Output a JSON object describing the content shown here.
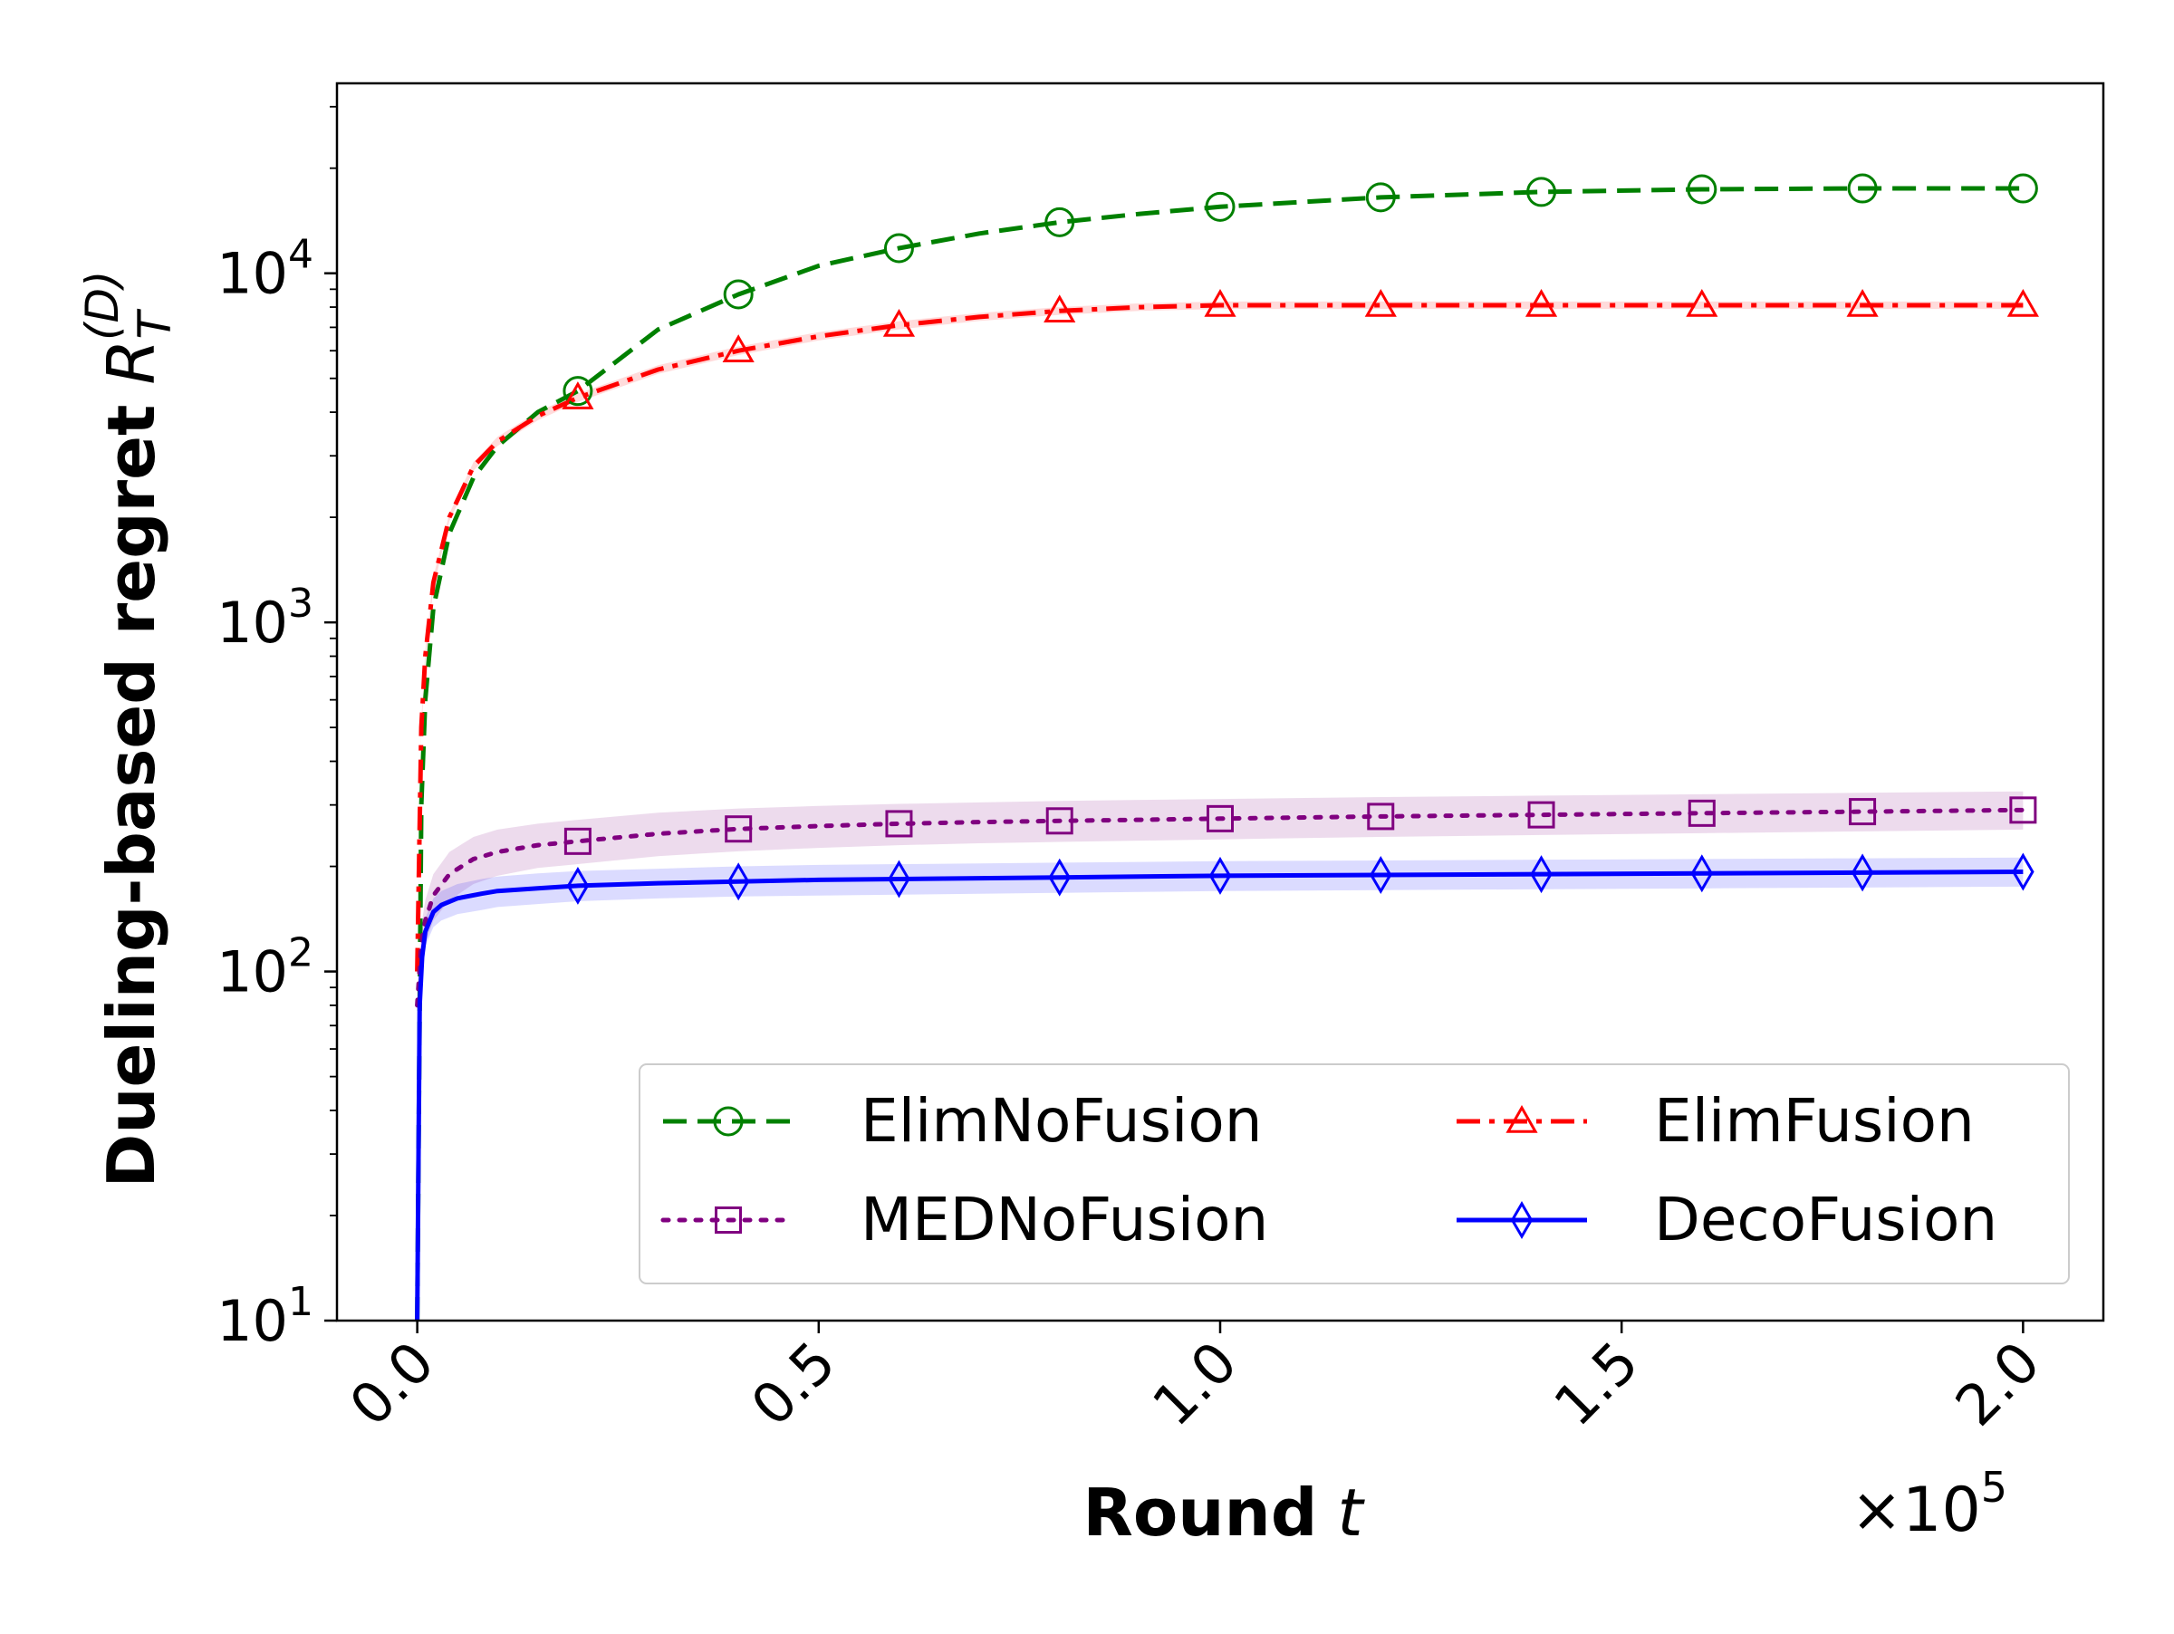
{
  "chart_data": {
    "type": "line",
    "title": "",
    "xlabel": "Round",
    "xlabel_var": "t",
    "ylabel": "Dueling-based regret",
    "ylabel_sym": "R",
    "ylabel_sub": "T",
    "ylabel_sup": "(D)",
    "x_offset_text": "×10",
    "x_offset_exp": "5",
    "xscale": "linear",
    "yscale": "log",
    "xlim": [
      -10000,
      210000
    ],
    "ylim": [
      10,
      35000
    ],
    "xticks": [
      {
        "value": 0,
        "label": "0.0"
      },
      {
        "value": 50000,
        "label": "0.5"
      },
      {
        "value": 100000,
        "label": "1.0"
      },
      {
        "value": 150000,
        "label": "1.5"
      },
      {
        "value": 200000,
        "label": "2.0"
      }
    ],
    "yticks": [
      {
        "value": 10,
        "base": "10",
        "exp": "1"
      },
      {
        "value": 100,
        "base": "10",
        "exp": "2"
      },
      {
        "value": 1000,
        "base": "10",
        "exp": "3"
      },
      {
        "value": 10000,
        "base": "10",
        "exp": "4"
      }
    ],
    "legend_position": "lower-right",
    "series": [
      {
        "name": "ElimNoFusion",
        "color": "#008000",
        "dash": "dashed",
        "marker": "circle",
        "x": [
          0,
          500,
          1000,
          2000,
          4000,
          7000,
          10000,
          15000,
          20000,
          30000,
          40000,
          50000,
          60000,
          70000,
          80000,
          90000,
          100000,
          120000,
          140000,
          160000,
          180000,
          200000
        ],
        "y": [
          10,
          300,
          600,
          1100,
          1800,
          2600,
          3200,
          4000,
          4600,
          6900,
          8700,
          10500,
          11800,
          13000,
          14000,
          14800,
          15500,
          16500,
          17100,
          17400,
          17500,
          17500
        ],
        "lower": [],
        "upper": [],
        "marker_x": [
          20000,
          40000,
          60000,
          80000,
          100000,
          120000,
          140000,
          160000,
          180000,
          200000
        ],
        "marker_y": [
          4600,
          8700,
          11800,
          14000,
          15500,
          16500,
          17100,
          17400,
          17500,
          17500
        ]
      },
      {
        "name": "ElimFusion",
        "color": "#ff0000",
        "dash": "dashdot",
        "marker": "triangle",
        "x": [
          0,
          500,
          1000,
          2000,
          4000,
          7000,
          10000,
          15000,
          20000,
          30000,
          40000,
          50000,
          60000,
          70000,
          80000,
          90000,
          100000,
          120000,
          140000,
          160000,
          180000,
          200000
        ],
        "y": [
          100,
          500,
          800,
          1300,
          2000,
          2800,
          3300,
          3900,
          4400,
          5300,
          6000,
          6600,
          7100,
          7500,
          7800,
          8000,
          8100,
          8100,
          8100,
          8100,
          8100,
          8100
        ],
        "lower": [
          100,
          480,
          770,
          1250,
          1950,
          2720,
          3200,
          3790,
          4280,
          5150,
          5830,
          6420,
          6910,
          7300,
          7600,
          7800,
          7900,
          7900,
          7900,
          7900,
          7900,
          7900
        ],
        "upper": [
          100,
          520,
          830,
          1350,
          2050,
          2880,
          3400,
          4010,
          4520,
          5450,
          6170,
          6780,
          7290,
          7700,
          8000,
          8200,
          8300,
          8300,
          8300,
          8300,
          8300,
          8300
        ],
        "marker_x": [
          20000,
          40000,
          60000,
          80000,
          100000,
          120000,
          140000,
          160000,
          180000,
          200000
        ],
        "marker_y": [
          4400,
          6000,
          7100,
          7800,
          8100,
          8100,
          8100,
          8100,
          8100,
          8100
        ]
      },
      {
        "name": "MEDNoFusion",
        "color": "#800080",
        "dash": "dotted",
        "marker": "square",
        "x": [
          0,
          500,
          1000,
          2000,
          4000,
          7000,
          10000,
          15000,
          20000,
          30000,
          40000,
          50000,
          60000,
          70000,
          80000,
          90000,
          100000,
          120000,
          140000,
          160000,
          180000,
          200000
        ],
        "y": [
          80,
          120,
          140,
          165,
          190,
          210,
          220,
          230,
          236,
          248,
          256,
          261,
          265,
          268,
          270,
          272,
          274,
          278,
          281,
          284,
          287,
          290
        ],
        "lower": [
          70,
          105,
          120,
          140,
          160,
          178,
          188,
          198,
          203,
          214,
          221,
          226,
          230,
          233,
          235,
          237,
          239,
          243,
          246,
          249,
          252,
          255
        ],
        "upper": [
          90,
          135,
          160,
          190,
          220,
          243,
          255,
          265,
          272,
          285,
          293,
          298,
          302,
          305,
          308,
          310,
          312,
          316,
          319,
          322,
          325,
          328
        ],
        "marker_x": [
          20000,
          40000,
          60000,
          80000,
          100000,
          120000,
          140000,
          160000,
          180000,
          200000
        ],
        "marker_y": [
          236,
          256,
          265,
          270,
          274,
          278,
          281,
          284,
          287,
          290
        ]
      },
      {
        "name": "DecoFusion",
        "color": "#0000ff",
        "dash": "solid",
        "marker": "diamond",
        "x": [
          0,
          300,
          600,
          1000,
          2000,
          3000,
          5000,
          8000,
          10000,
          15000,
          20000,
          30000,
          40000,
          50000,
          60000,
          70000,
          80000,
          90000,
          100000,
          120000,
          140000,
          160000,
          180000,
          200000
        ],
        "y": [
          10,
          80,
          110,
          130,
          148,
          155,
          162,
          167,
          170,
          173,
          176,
          179,
          181,
          183,
          184,
          185,
          186,
          187,
          188,
          189,
          190,
          191,
          192,
          193
        ],
        "lower": [
          10,
          75,
          100,
          118,
          134,
          140,
          146,
          150,
          153,
          156,
          159,
          162,
          164,
          165,
          166,
          167,
          168,
          169,
          170,
          171,
          172,
          173,
          174,
          175
        ],
        "upper": [
          10,
          86,
          120,
          142,
          162,
          170,
          178,
          184,
          187,
          191,
          194,
          197,
          200,
          202,
          203,
          204,
          205,
          206,
          207,
          208,
          209,
          210,
          211,
          212
        ],
        "marker_x": [
          20000,
          40000,
          60000,
          80000,
          100000,
          120000,
          140000,
          160000,
          180000,
          200000
        ],
        "marker_y": [
          176,
          181,
          184,
          186,
          188,
          189,
          190,
          191,
          192,
          193
        ]
      }
    ]
  }
}
